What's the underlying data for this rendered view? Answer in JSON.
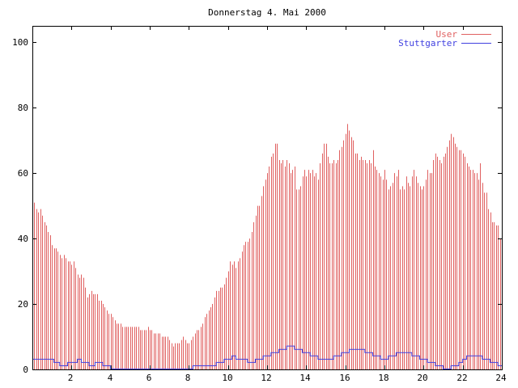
{
  "chart_data": {
    "type": "bar",
    "title": "Donnerstag 4. Mai 2000",
    "xlabel": "",
    "ylabel": "",
    "xlim": [
      0,
      24
    ],
    "ylim": [
      0,
      105
    ],
    "x_ticks": [
      {
        "value": 2,
        "label": "2"
      },
      {
        "value": 4,
        "label": "4"
      },
      {
        "value": 6,
        "label": "6"
      },
      {
        "value": 8,
        "label": "8"
      },
      {
        "value": 10,
        "label": "10"
      },
      {
        "value": 12,
        "label": "12"
      },
      {
        "value": 14,
        "label": "14"
      },
      {
        "value": 16,
        "label": "16"
      },
      {
        "value": 18,
        "label": "18"
      },
      {
        "value": 20,
        "label": "20"
      },
      {
        "value": 22,
        "label": "22"
      },
      {
        "value": 24,
        "label": "24"
      }
    ],
    "y_ticks": [
      {
        "value": 0,
        "label": "0"
      },
      {
        "value": 20,
        "label": "20"
      },
      {
        "value": 40,
        "label": "40"
      },
      {
        "value": 60,
        "label": "60"
      },
      {
        "value": 80,
        "label": "80"
      },
      {
        "value": 100,
        "label": "100"
      }
    ],
    "grid": false,
    "legend_position": "top-right",
    "colors": {
      "user": "#e06060",
      "stuttgarter": "#4040e0",
      "axis": "#000000"
    },
    "series": [
      {
        "name": "User",
        "style": "impulses",
        "x_start": 0,
        "x_step": 0.1,
        "values": [
          55,
          51,
          49,
          48,
          49,
          47,
          45,
          44,
          42,
          41,
          38,
          37,
          37,
          36,
          35,
          34,
          35,
          34,
          33,
          33,
          32,
          33,
          31,
          29,
          28,
          29,
          28,
          25,
          22,
          23,
          24,
          23,
          23,
          23,
          21,
          21,
          20,
          19,
          18,
          17,
          17,
          16,
          15,
          14,
          14,
          14,
          13,
          13,
          13,
          13,
          13,
          13,
          13,
          13,
          13,
          12,
          12,
          12,
          12,
          13,
          12,
          12,
          11,
          11,
          11,
          11,
          10,
          10,
          10,
          10,
          9,
          8,
          7,
          8,
          8,
          8,
          9,
          10,
          9,
          8,
          8,
          9,
          10,
          11,
          12,
          12,
          13,
          14,
          16,
          17,
          18,
          19,
          20,
          22,
          24,
          24,
          25,
          25,
          26,
          28,
          30,
          33,
          32,
          33,
          31,
          33,
          34,
          36,
          38,
          39,
          39,
          40,
          42,
          45,
          47,
          50,
          50,
          53,
          56,
          58,
          60,
          62,
          65,
          66,
          69,
          69,
          64,
          63,
          64,
          62,
          64,
          63,
          60,
          61,
          62,
          55,
          55,
          56,
          59,
          61,
          59,
          61,
          60,
          61,
          59,
          60,
          58,
          63,
          66,
          69,
          69,
          65,
          63,
          63,
          64,
          63,
          64,
          67,
          68,
          70,
          72,
          75,
          73,
          71,
          70,
          66,
          66,
          64,
          65,
          64,
          64,
          63,
          64,
          63,
          67,
          62,
          61,
          60,
          59,
          58,
          61,
          58,
          55,
          56,
          57,
          60,
          59,
          61,
          55,
          56,
          55,
          59,
          57,
          56,
          59,
          61,
          59,
          57,
          56,
          55,
          56,
          58,
          61,
          60,
          60,
          64,
          66,
          65,
          64,
          63,
          65,
          66,
          68,
          70,
          72,
          71,
          69,
          68,
          67,
          67,
          66,
          65,
          63,
          62,
          61,
          61,
          60,
          60,
          58,
          63,
          57,
          54,
          54,
          49,
          48,
          45,
          45,
          44,
          44,
          40
        ]
      },
      {
        "name": "Stuttgarter",
        "style": "steps",
        "points": [
          [
            0,
            3
          ],
          [
            1.0,
            3
          ],
          [
            1.1,
            2
          ],
          [
            1.4,
            1
          ],
          [
            1.8,
            2
          ],
          [
            2.3,
            3
          ],
          [
            2.5,
            2
          ],
          [
            2.9,
            1
          ],
          [
            3.2,
            2
          ],
          [
            3.6,
            1
          ],
          [
            4.0,
            0
          ],
          [
            8.0,
            0
          ],
          [
            8.2,
            1
          ],
          [
            9.0,
            1
          ],
          [
            9.4,
            2
          ],
          [
            9.8,
            3
          ],
          [
            10.2,
            4
          ],
          [
            10.4,
            3
          ],
          [
            11.0,
            2
          ],
          [
            11.4,
            3
          ],
          [
            11.8,
            4
          ],
          [
            12.2,
            5
          ],
          [
            12.6,
            6
          ],
          [
            13.0,
            7
          ],
          [
            13.4,
            6
          ],
          [
            13.8,
            5
          ],
          [
            14.2,
            4
          ],
          [
            14.6,
            3
          ],
          [
            15.0,
            3
          ],
          [
            15.4,
            4
          ],
          [
            15.8,
            5
          ],
          [
            16.2,
            6
          ],
          [
            16.6,
            6
          ],
          [
            17.0,
            5
          ],
          [
            17.4,
            4
          ],
          [
            17.8,
            3
          ],
          [
            18.2,
            4
          ],
          [
            18.6,
            5
          ],
          [
            19.0,
            5
          ],
          [
            19.4,
            4
          ],
          [
            19.8,
            3
          ],
          [
            20.2,
            2
          ],
          [
            20.6,
            1
          ],
          [
            21.0,
            0
          ],
          [
            21.4,
            1
          ],
          [
            21.8,
            2
          ],
          [
            22.0,
            3
          ],
          [
            22.2,
            4
          ],
          [
            22.6,
            4
          ],
          [
            23.0,
            3
          ],
          [
            23.4,
            2
          ],
          [
            23.8,
            1
          ],
          [
            24.0,
            1
          ]
        ]
      }
    ]
  }
}
